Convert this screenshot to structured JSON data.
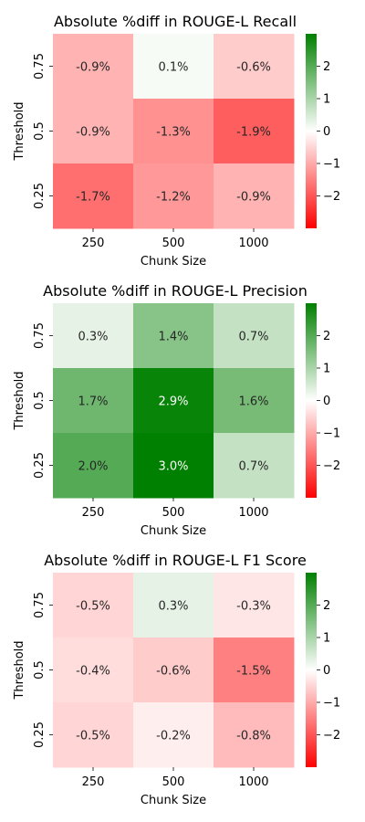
{
  "chart_data": [
    {
      "type": "heatmap",
      "title": "Absolute %diff in ROUGE-L Recall",
      "xlabel": "Chunk Size",
      "ylabel": "Threshold",
      "x": [
        "250",
        "500",
        "1000"
      ],
      "y": [
        "0.75",
        "0.5",
        "0.25"
      ],
      "values": [
        [
          -0.9,
          0.1,
          -0.6
        ],
        [
          -0.9,
          -1.3,
          -1.9
        ],
        [
          -1.7,
          -1.2,
          -0.9
        ]
      ],
      "labels": [
        [
          "-0.9%",
          "0.1%",
          "-0.6%"
        ],
        [
          "-0.9%",
          "-1.3%",
          "-1.9%"
        ],
        [
          "-1.7%",
          "-1.2%",
          "-0.9%"
        ]
      ],
      "colorbar": {
        "range": [
          -3,
          3
        ],
        "ticks": [
          "2",
          "1",
          "0",
          "−1",
          "−2"
        ],
        "tick_values": [
          2,
          1,
          0,
          -1,
          -2
        ]
      }
    },
    {
      "type": "heatmap",
      "title": "Absolute %diff in ROUGE-L Precision",
      "xlabel": "Chunk Size",
      "ylabel": "Threshold",
      "x": [
        "250",
        "500",
        "1000"
      ],
      "y": [
        "0.75",
        "0.5",
        "0.25"
      ],
      "values": [
        [
          0.3,
          1.4,
          0.7
        ],
        [
          1.7,
          2.9,
          1.6
        ],
        [
          2.0,
          3.0,
          0.7
        ]
      ],
      "labels": [
        [
          "0.3%",
          "1.4%",
          "0.7%"
        ],
        [
          "1.7%",
          "2.9%",
          "1.6%"
        ],
        [
          "2.0%",
          "3.0%",
          "0.7%"
        ]
      ],
      "colorbar": {
        "range": [
          -3,
          3
        ],
        "ticks": [
          "2",
          "1",
          "0",
          "−1",
          "−2"
        ],
        "tick_values": [
          2,
          1,
          0,
          -1,
          -2
        ]
      }
    },
    {
      "type": "heatmap",
      "title": "Absolute %diff in ROUGE-L F1 Score",
      "xlabel": "Chunk Size",
      "ylabel": "Threshold",
      "x": [
        "250",
        "500",
        "1000"
      ],
      "y": [
        "0.75",
        "0.5",
        "0.25"
      ],
      "values": [
        [
          -0.5,
          0.3,
          -0.3
        ],
        [
          -0.4,
          -0.6,
          -1.5
        ],
        [
          -0.5,
          -0.2,
          -0.8
        ]
      ],
      "labels": [
        [
          "-0.5%",
          "0.3%",
          "-0.3%"
        ],
        [
          "-0.4%",
          "-0.6%",
          "-1.5%"
        ],
        [
          "-0.5%",
          "-0.2%",
          "-0.8%"
        ]
      ],
      "colorbar": {
        "range": [
          -3,
          3
        ],
        "ticks": [
          "2",
          "1",
          "0",
          "−1",
          "−2"
        ],
        "tick_values": [
          2,
          1,
          0,
          -1,
          -2
        ]
      }
    }
  ],
  "colors": {
    "negative": "#ff0000",
    "neutral": "#ffffff",
    "positive": "#008000"
  }
}
